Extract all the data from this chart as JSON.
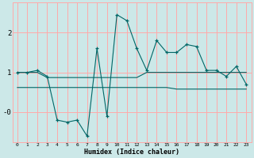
{
  "xlabel": "Humidex (Indice chaleur)",
  "bg_color": "#cce8e8",
  "grid_color": "#ffaaaa",
  "line_color": "#006666",
  "x": [
    0,
    1,
    2,
    3,
    4,
    5,
    6,
    7,
    8,
    9,
    10,
    11,
    12,
    13,
    14,
    15,
    16,
    17,
    18,
    19,
    20,
    21,
    22,
    23
  ],
  "y_main": [
    1.0,
    1.0,
    1.05,
    0.9,
    -0.2,
    -0.25,
    -0.2,
    -0.6,
    1.6,
    -0.1,
    2.45,
    2.3,
    1.6,
    1.05,
    1.8,
    1.5,
    1.5,
    1.7,
    1.65,
    1.05,
    1.05,
    0.9,
    1.15,
    0.7
  ],
  "y_line1": [
    1.0,
    1.0,
    1.0,
    0.87,
    0.87,
    0.87,
    0.87,
    0.87,
    0.87,
    0.87,
    0.87,
    0.87,
    0.87,
    1.0,
    1.0,
    1.0,
    1.0,
    1.0,
    1.0,
    1.0,
    1.0,
    1.0,
    1.0,
    1.0
  ],
  "y_line2": [
    0.62,
    0.62,
    0.62,
    0.62,
    0.62,
    0.62,
    0.62,
    0.62,
    0.62,
    0.62,
    0.62,
    0.62,
    0.62,
    0.62,
    0.62,
    0.62,
    0.58,
    0.58,
    0.58,
    0.58,
    0.58,
    0.58,
    0.58,
    0.58
  ],
  "ylim": [
    -0.75,
    2.75
  ],
  "xlim": [
    -0.5,
    23.5
  ],
  "yticks": [
    0,
    1,
    2
  ],
  "ytick_labels": [
    "-0",
    "1",
    "2"
  ],
  "xticks": [
    0,
    1,
    2,
    3,
    4,
    5,
    6,
    7,
    8,
    9,
    10,
    11,
    12,
    13,
    14,
    15,
    16,
    17,
    18,
    19,
    20,
    21,
    22,
    23
  ]
}
